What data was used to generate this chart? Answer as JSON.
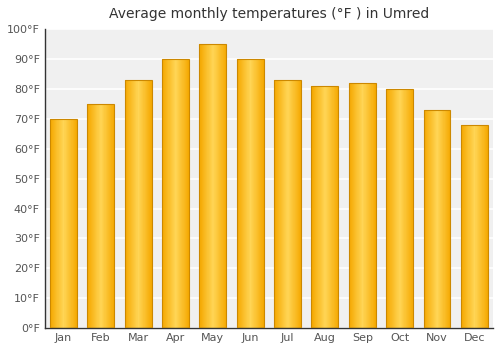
{
  "title": "Average monthly temperatures (°F ) in Umred",
  "months": [
    "Jan",
    "Feb",
    "Mar",
    "Apr",
    "May",
    "Jun",
    "Jul",
    "Aug",
    "Sep",
    "Oct",
    "Nov",
    "Dec"
  ],
  "values": [
    70,
    75,
    83,
    90,
    95,
    90,
    83,
    81,
    82,
    80,
    73,
    68
  ],
  "bar_color_center": "#FFD555",
  "bar_color_edge": "#F5A800",
  "bar_outline_color": "#CC8800",
  "ylim": [
    0,
    100
  ],
  "yticks": [
    0,
    10,
    20,
    30,
    40,
    50,
    60,
    70,
    80,
    90,
    100
  ],
  "ytick_labels": [
    "0°F",
    "10°F",
    "20°F",
    "30°F",
    "40°F",
    "50°F",
    "60°F",
    "70°F",
    "80°F",
    "90°F",
    "100°F"
  ],
  "background_color": "#ffffff",
  "plot_bg_color": "#f0f0f0",
  "grid_color": "#ffffff",
  "axis_color": "#333333",
  "title_fontsize": 10,
  "tick_fontsize": 8,
  "tick_font_color": "#555555",
  "bar_width": 0.72
}
